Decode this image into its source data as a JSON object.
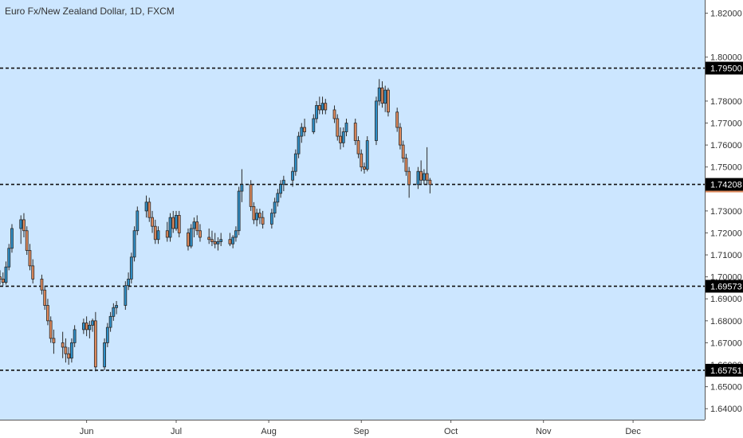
{
  "chart_data": {
    "type": "candlestick",
    "title": "Euro Fx/New Zealand Dollar, 1D, FXCM",
    "y_axis": {
      "ylim": [
        1.635,
        1.826
      ],
      "ticks": [
        "1.82000",
        "1.80000",
        "1.78000",
        "1.77000",
        "1.76000",
        "1.75000",
        "1.74000",
        "1.73000",
        "1.72000",
        "1.71000",
        "1.70000",
        "1.69000",
        "1.68000",
        "1.67000",
        "1.66000",
        "1.65000",
        "1.64000"
      ],
      "position": "right"
    },
    "x_axis": {
      "labels": [
        {
          "label": "Jun",
          "day": 16
        },
        {
          "label": "Jul",
          "day": 46
        },
        {
          "label": "Aug",
          "day": 77
        },
        {
          "label": "Sep",
          "day": 108
        },
        {
          "label": "Oct",
          "day": 138
        },
        {
          "label": "Nov",
          "day": 169
        },
        {
          "label": "Dec",
          "day": 199
        }
      ],
      "day_range": [
        -13,
        223
      ]
    },
    "horizontal_levels": [
      {
        "value": 1.795,
        "label": "1.79500",
        "style": "dashed"
      },
      {
        "value": 1.74208,
        "label": "1.74208",
        "style": "dashed",
        "current": true
      },
      {
        "value": 1.69573,
        "label": "1.69573",
        "style": "dashed"
      },
      {
        "value": 1.65751,
        "label": "1.65751",
        "style": "dashed"
      }
    ],
    "up_color": "#2e8fc8",
    "down_color": "#e08a5c",
    "background": "#cce6ff",
    "candles": [
      [
        -13,
        1.7,
        1.703,
        1.6965,
        1.699
      ],
      [
        -12,
        1.699,
        1.702,
        1.696,
        1.6975
      ],
      [
        -11,
        1.6975,
        1.707,
        1.6965,
        1.7045
      ],
      [
        -10,
        1.7045,
        1.715,
        1.703,
        1.713
      ],
      [
        -9,
        1.713,
        1.724,
        1.711,
        1.722
      ],
      [
        -6,
        1.722,
        1.728,
        1.715,
        1.726
      ],
      [
        -5,
        1.726,
        1.729,
        1.718,
        1.721
      ],
      [
        -4,
        1.721,
        1.723,
        1.71,
        1.712
      ],
      [
        -3,
        1.712,
        1.715,
        1.703,
        1.705
      ],
      [
        -2,
        1.705,
        1.708,
        1.697,
        1.699
      ],
      [
        1,
        1.699,
        1.701,
        1.692,
        1.694
      ],
      [
        2,
        1.694,
        1.696,
        1.685,
        1.687
      ],
      [
        3,
        1.687,
        1.69,
        1.678,
        1.68
      ],
      [
        4,
        1.68,
        1.682,
        1.67,
        1.672
      ],
      [
        5,
        1.672,
        1.676,
        1.665,
        1.67
      ],
      [
        8,
        1.67,
        1.675,
        1.663,
        1.668
      ],
      [
        9,
        1.668,
        1.672,
        1.661,
        1.665
      ],
      [
        10,
        1.665,
        1.668,
        1.66,
        1.663
      ],
      [
        11,
        1.663,
        1.672,
        1.661,
        1.67
      ],
      [
        12,
        1.67,
        1.678,
        1.668,
        1.676
      ],
      [
        15,
        1.676,
        1.681,
        1.674,
        1.679
      ],
      [
        16,
        1.679,
        1.682,
        1.673,
        1.676
      ],
      [
        17,
        1.676,
        1.68,
        1.672,
        1.678
      ],
      [
        18,
        1.678,
        1.681,
        1.675,
        1.68
      ],
      [
        19,
        1.68,
        1.684,
        1.657,
        1.659
      ],
      [
        22,
        1.659,
        1.672,
        1.6575,
        1.67
      ],
      [
        23,
        1.67,
        1.679,
        1.668,
        1.677
      ],
      [
        24,
        1.677,
        1.684,
        1.675,
        1.682
      ],
      [
        25,
        1.682,
        1.688,
        1.68,
        1.686
      ],
      [
        26,
        1.686,
        1.689,
        1.683,
        1.687
      ],
      [
        29,
        1.687,
        1.698,
        1.685,
        1.696
      ],
      [
        30,
        1.696,
        1.702,
        1.694,
        1.699
      ],
      [
        31,
        1.699,
        1.711,
        1.697,
        1.709
      ],
      [
        32,
        1.709,
        1.723,
        1.707,
        1.721
      ],
      [
        33,
        1.721,
        1.732,
        1.719,
        1.73
      ],
      [
        36,
        1.73,
        1.737,
        1.727,
        1.734
      ],
      [
        37,
        1.734,
        1.736,
        1.725,
        1.727
      ],
      [
        38,
        1.727,
        1.73,
        1.72,
        1.723
      ],
      [
        39,
        1.723,
        1.726,
        1.715,
        1.717
      ],
      [
        40,
        1.717,
        1.723,
        1.715,
        1.721
      ],
      [
        43,
        1.721,
        1.725,
        1.716,
        1.718
      ],
      [
        44,
        1.718,
        1.729,
        1.716,
        1.727
      ],
      [
        45,
        1.727,
        1.73,
        1.72,
        1.722
      ],
      [
        46,
        1.722,
        1.73,
        1.721,
        1.728
      ],
      [
        47,
        1.728,
        1.73,
        1.718,
        1.72
      ],
      [
        50,
        1.72,
        1.722,
        1.712,
        1.714
      ],
      [
        51,
        1.714,
        1.724,
        1.713,
        1.722
      ],
      [
        52,
        1.722,
        1.727,
        1.718,
        1.725
      ],
      [
        53,
        1.725,
        1.728,
        1.719,
        1.721
      ],
      [
        54,
        1.721,
        1.724,
        1.716,
        1.718
      ],
      [
        57,
        1.718,
        1.722,
        1.715,
        1.717
      ],
      [
        58,
        1.717,
        1.721,
        1.714,
        1.716
      ],
      [
        59,
        1.716,
        1.72,
        1.713,
        1.715
      ],
      [
        60,
        1.715,
        1.718,
        1.712,
        1.716
      ],
      [
        61,
        1.716,
        1.72,
        1.714,
        1.717
      ],
      [
        64,
        1.717,
        1.72,
        1.714,
        1.715
      ],
      [
        65,
        1.715,
        1.719,
        1.713,
        1.718
      ],
      [
        66,
        1.718,
        1.723,
        1.716,
        1.721
      ],
      [
        67,
        1.721,
        1.741,
        1.719,
        1.739
      ],
      [
        68,
        1.739,
        1.749,
        1.734,
        1.742
      ],
      [
        71,
        1.742,
        1.744,
        1.73,
        1.732
      ],
      [
        72,
        1.732,
        1.734,
        1.724,
        1.726
      ],
      [
        73,
        1.726,
        1.731,
        1.723,
        1.729
      ],
      [
        74,
        1.729,
        1.731,
        1.724,
        1.727
      ],
      [
        75,
        1.727,
        1.73,
        1.722,
        1.724
      ],
      [
        78,
        1.724,
        1.731,
        1.722,
        1.729
      ],
      [
        79,
        1.729,
        1.736,
        1.727,
        1.734
      ],
      [
        80,
        1.734,
        1.74,
        1.732,
        1.738
      ],
      [
        81,
        1.738,
        1.744,
        1.736,
        1.742
      ],
      [
        82,
        1.742,
        1.746,
        1.739,
        1.744
      ],
      [
        85,
        1.744,
        1.75,
        1.741,
        1.748
      ],
      [
        86,
        1.748,
        1.758,
        1.746,
        1.756
      ],
      [
        87,
        1.756,
        1.766,
        1.754,
        1.764
      ],
      [
        88,
        1.764,
        1.77,
        1.761,
        1.768
      ],
      [
        89,
        1.768,
        1.772,
        1.764,
        1.766
      ],
      [
        92,
        1.766,
        1.774,
        1.765,
        1.772
      ],
      [
        93,
        1.772,
        1.78,
        1.77,
        1.778
      ],
      [
        94,
        1.778,
        1.782,
        1.774,
        1.776
      ],
      [
        95,
        1.776,
        1.782,
        1.774,
        1.779
      ],
      [
        96,
        1.779,
        1.781,
        1.774,
        1.776
      ],
      [
        99,
        1.776,
        1.778,
        1.77,
        1.772
      ],
      [
        100,
        1.772,
        1.774,
        1.762,
        1.764
      ],
      [
        101,
        1.764,
        1.768,
        1.758,
        1.761
      ],
      [
        102,
        1.761,
        1.768,
        1.759,
        1.766
      ],
      [
        103,
        1.766,
        1.772,
        1.764,
        1.77
      ],
      [
        106,
        1.77,
        1.772,
        1.76,
        1.762
      ],
      [
        107,
        1.762,
        1.764,
        1.754,
        1.756
      ],
      [
        108,
        1.756,
        1.758,
        1.748,
        1.75
      ],
      [
        109,
        1.75,
        1.752,
        1.747,
        1.749
      ],
      [
        110,
        1.749,
        1.764,
        1.748,
        1.762
      ],
      [
        113,
        1.762,
        1.782,
        1.76,
        1.78
      ],
      [
        114,
        1.78,
        1.79,
        1.778,
        1.786
      ],
      [
        115,
        1.786,
        1.789,
        1.777,
        1.779
      ],
      [
        116,
        1.779,
        1.787,
        1.775,
        1.785
      ],
      [
        117,
        1.785,
        1.786,
        1.773,
        1.775
      ],
      [
        120,
        1.775,
        1.777,
        1.766,
        1.768
      ],
      [
        121,
        1.768,
        1.77,
        1.758,
        1.76
      ],
      [
        122,
        1.76,
        1.762,
        1.752,
        1.754
      ],
      [
        123,
        1.754,
        1.756,
        1.746,
        1.748
      ],
      [
        124,
        1.748,
        1.75,
        1.736,
        1.742
      ],
      [
        127,
        1.742,
        1.75,
        1.74,
        1.748
      ],
      [
        128,
        1.748,
        1.753,
        1.742,
        1.744
      ],
      [
        129,
        1.744,
        1.749,
        1.742,
        1.747
      ],
      [
        130,
        1.747,
        1.759,
        1.742,
        1.744
      ],
      [
        131,
        1.744,
        1.745,
        1.738,
        1.742
      ]
    ]
  }
}
